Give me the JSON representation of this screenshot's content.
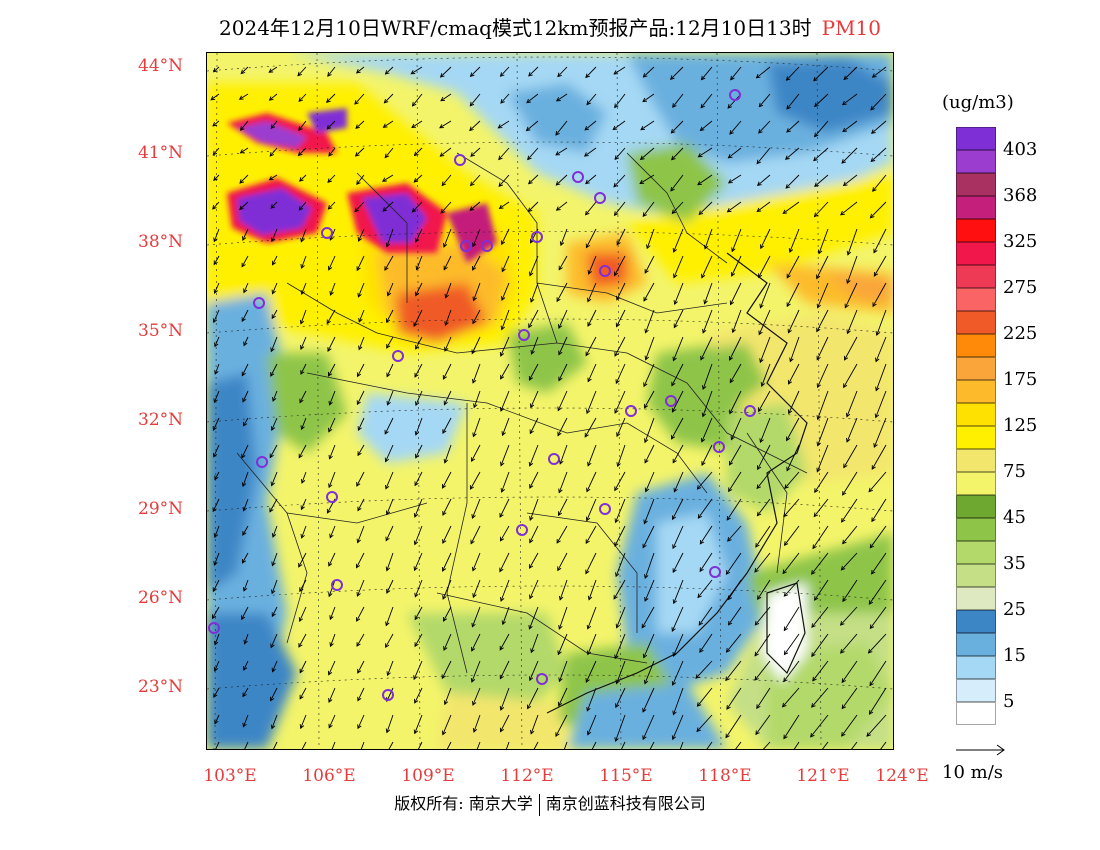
{
  "header": {
    "title": "2024年12月10日WRF/cmaq模式12km预报产品:12月10日13时",
    "pollutant": "PM10"
  },
  "map": {
    "lat_labels": [
      "44°N",
      "41°N",
      "38°N",
      "35°N",
      "32°N",
      "29°N",
      "26°N",
      "23°N"
    ],
    "lon_labels": [
      "103°E",
      "106°E",
      "109°E",
      "112°E",
      "115°E",
      "118°E",
      "121°E",
      "124°E"
    ]
  },
  "legend": {
    "unit": "(ug/m3)",
    "levels": [
      {
        "label": "403",
        "color": "#7f2fd6"
      },
      {
        "label": "",
        "color": "#9b3dcf"
      },
      {
        "label": "368",
        "color": "#a83162"
      },
      {
        "label": "",
        "color": "#c41f7a"
      },
      {
        "label": "325",
        "color": "#ff0f0f"
      },
      {
        "label": "",
        "color": "#f1174b"
      },
      {
        "label": "275",
        "color": "#ef3a55"
      },
      {
        "label": "",
        "color": "#fa6464"
      },
      {
        "label": "225",
        "color": "#f05a28"
      },
      {
        "label": "",
        "color": "#ff8a0a"
      },
      {
        "label": "175",
        "color": "#f9a53a"
      },
      {
        "label": "",
        "color": "#fdbb2b"
      },
      {
        "label": "125",
        "color": "#ffe100"
      },
      {
        "label": "",
        "color": "#fff000"
      },
      {
        "label": "75",
        "color": "#f3e66d"
      },
      {
        "label": "",
        "color": "#f3f46a"
      },
      {
        "label": "45",
        "color": "#6fa830"
      },
      {
        "label": "",
        "color": "#8ec549"
      },
      {
        "label": "35",
        "color": "#b3d96a"
      },
      {
        "label": "",
        "color": "#c4df86"
      },
      {
        "label": "25",
        "color": "#dfe9c1"
      },
      {
        "label": "",
        "color": "#3d86c6"
      },
      {
        "label": "15",
        "color": "#6ab0df"
      },
      {
        "label": "",
        "color": "#a5d8f4"
      },
      {
        "label": "5",
        "color": "#d6eefb"
      },
      {
        "label": "",
        "color": "#ffffff"
      }
    ]
  },
  "wind_reference": {
    "label": "10 m/s"
  },
  "footer": {
    "left": "版权所有: 南京大学",
    "right": "南京创蓝科技有限公司"
  }
}
